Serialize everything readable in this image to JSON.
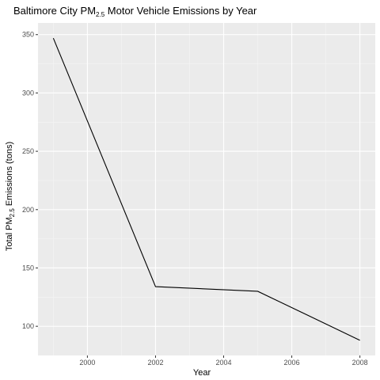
{
  "chart_data": {
    "type": "line",
    "title": {
      "pre": "Baltimore City PM",
      "sub": "2.5",
      "post": " Motor Vehicle Emissions by Year"
    },
    "xlabel": "Year",
    "ylabel": {
      "pre": "Total PM",
      "sub": "2.5",
      "post": " Emissions (tons)"
    },
    "x": [
      1999,
      2002,
      2005,
      2008
    ],
    "series": [
      {
        "values": [
          347,
          134,
          130,
          88
        ]
      }
    ],
    "xlim": [
      1998.55,
      2008.45
    ],
    "ylim": [
      75,
      360
    ],
    "x_major_ticks": [
      2000,
      2002,
      2004,
      2006,
      2008
    ],
    "x_tick_labels": [
      "2000",
      "2002",
      "2004",
      "2006",
      "2008"
    ],
    "x_minor_ticks": [
      1999,
      2001,
      2003,
      2005,
      2007
    ],
    "y_major_ticks": [
      100,
      150,
      200,
      250,
      300,
      350
    ],
    "y_tick_labels": [
      "100",
      "150",
      "200",
      "250",
      "300",
      "350"
    ],
    "y_minor_ticks": [
      125,
      175,
      225,
      275,
      325
    ],
    "grid": true,
    "legend": "none",
    "colors": {
      "panel_background": "#ebebeb",
      "grid_major": "#ffffff",
      "grid_minor": "#f5f5f5",
      "line": "#000000",
      "tick_mark": "#333333"
    }
  }
}
